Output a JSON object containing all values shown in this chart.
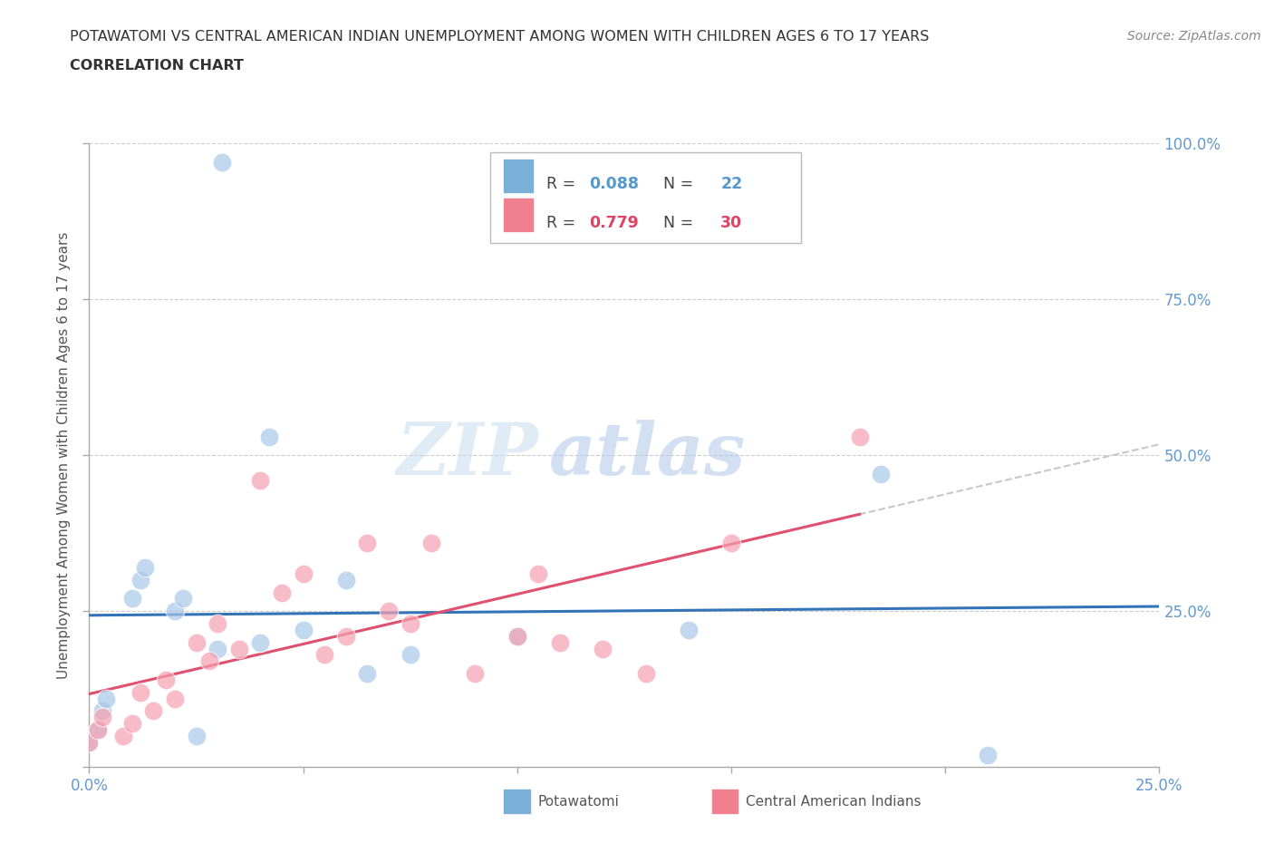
{
  "title_line1": "POTAWATOMI VS CENTRAL AMERICAN INDIAN UNEMPLOYMENT AMONG WOMEN WITH CHILDREN AGES 6 TO 17 YEARS",
  "title_line2": "CORRELATION CHART",
  "source_text": "Source: ZipAtlas.com",
  "ylabel": "Unemployment Among Women with Children Ages 6 to 17 years",
  "xlim": [
    0.0,
    0.25
  ],
  "ylim": [
    0.0,
    1.0
  ],
  "blue_color": "#a8c8e8",
  "pink_color": "#f4a0b0",
  "blue_line_color": "#3374b9",
  "pink_line_color": "#e05070",
  "dashed_line_color": "#c8c8c8",
  "background_color": "#ffffff",
  "watermark_zip": "ZIP",
  "watermark_atlas": "atlas",
  "legend_blue_r": "0.088",
  "legend_blue_n": "22",
  "legend_pink_r": "0.779",
  "legend_pink_n": "30",
  "blue_color_legend": "#7ab0d8",
  "pink_color_legend": "#f08090",
  "potawatomi_x": [
    0.031,
    0.0,
    0.002,
    0.003,
    0.004,
    0.01,
    0.012,
    0.013,
    0.02,
    0.022,
    0.025,
    0.03,
    0.04,
    0.042,
    0.05,
    0.06,
    0.065,
    0.075,
    0.1,
    0.14,
    0.185,
    0.21
  ],
  "potawatomi_y": [
    0.97,
    0.04,
    0.06,
    0.09,
    0.11,
    0.27,
    0.3,
    0.32,
    0.25,
    0.27,
    0.05,
    0.19,
    0.2,
    0.53,
    0.22,
    0.3,
    0.15,
    0.18,
    0.21,
    0.22,
    0.47,
    0.02
  ],
  "central_x": [
    0.0,
    0.002,
    0.003,
    0.008,
    0.01,
    0.012,
    0.015,
    0.018,
    0.02,
    0.025,
    0.028,
    0.03,
    0.035,
    0.04,
    0.045,
    0.05,
    0.055,
    0.06,
    0.065,
    0.07,
    0.075,
    0.08,
    0.09,
    0.1,
    0.105,
    0.11,
    0.12,
    0.13,
    0.15,
    0.18
  ],
  "central_y": [
    0.04,
    0.06,
    0.08,
    0.05,
    0.07,
    0.12,
    0.09,
    0.14,
    0.11,
    0.2,
    0.17,
    0.23,
    0.19,
    0.46,
    0.28,
    0.31,
    0.18,
    0.21,
    0.36,
    0.25,
    0.23,
    0.36,
    0.15,
    0.21,
    0.31,
    0.2,
    0.19,
    0.15,
    0.36,
    0.53
  ]
}
